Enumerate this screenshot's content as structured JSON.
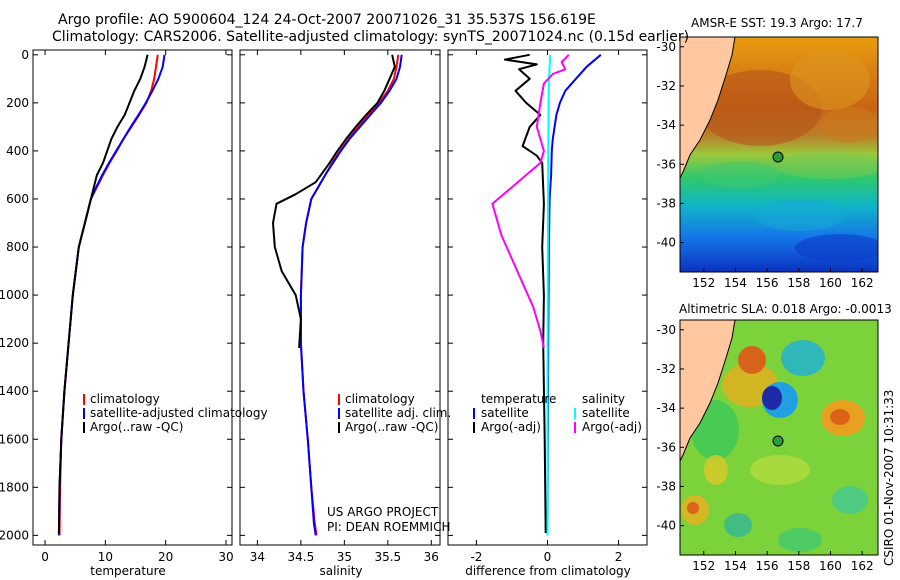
{
  "title_line1": "Argo profile: AO 5900604_124 24-Oct-2007 20071026_31 35.537S 156.619E",
  "title_line2": "Climatology: CARS2006. Satellite-adjusted climatology: synTS_20071024.nc (0.15d earlier)",
  "credit_line1": "US ARGO PROJECT",
  "credit_line2": "PI: DEAN ROEMMICH",
  "side_stamp": "CSIRO 01-Nov-2007 10:31:33",
  "colors": {
    "climatology": "#ff0000",
    "satellite": "#0000ff",
    "argo": "#000000",
    "argo_adj": "#ff00ff",
    "satellite_diff": "#00ffff",
    "land": "#ffc8a0"
  },
  "map_sst": {
    "title": "AMSR-E SST: 19.3  Argo: 17.7",
    "xticks": [
      "152",
      "154",
      "156",
      "158",
      "160",
      "162"
    ],
    "yticks": [
      "-30",
      "-32",
      "-34",
      "-36",
      "-38",
      "-40"
    ]
  },
  "map_sla": {
    "title": "Altimetric SLA: 0.018  Argo: -0.0013",
    "xticks": [
      "152",
      "154",
      "156",
      "158",
      "160",
      "162"
    ],
    "yticks": [
      "-30",
      "-32",
      "-34",
      "-36",
      "-38",
      "-40"
    ]
  },
  "float_position": {
    "lon": 156.619,
    "lat": -35.537
  },
  "chart_data": [
    {
      "type": "line",
      "xlabel": "temperature",
      "xlim": [
        -2,
        31
      ],
      "ylim": [
        2040,
        -20
      ],
      "xticks": [
        "0",
        "10",
        "20",
        "30"
      ],
      "yticks": [
        "0",
        "200",
        "400",
        "600",
        "800",
        "1000",
        "1200",
        "1400",
        "1600",
        "1800",
        "2000"
      ],
      "legend": [
        "climatology",
        "satellite-adjusted climatology",
        "Argo(..raw -QC)"
      ],
      "series": [
        {
          "name": "climatology",
          "color": "#ff0000",
          "x": [
            18.7,
            18.4,
            18.1,
            17.6,
            16.8,
            15.6,
            14.3,
            13.0,
            11.9,
            10.7,
            9.6,
            8.6,
            7.6,
            6.6,
            5.6,
            4.6,
            3.9,
            3.2,
            2.7,
            2.5,
            2.4
          ],
          "y": [
            0,
            50,
            100,
            150,
            200,
            250,
            300,
            350,
            400,
            450,
            500,
            550,
            600,
            700,
            800,
            1000,
            1200,
            1400,
            1600,
            1800,
            2000
          ]
        },
        {
          "name": "satellite-adjusted climatology",
          "color": "#0000ff",
          "x": [
            19.8,
            19.5,
            18.8,
            17.8,
            16.7,
            15.5,
            14.2,
            13.0,
            11.8,
            10.6,
            9.5,
            8.5,
            7.6,
            6.6,
            5.6,
            4.6,
            3.9,
            3.2,
            2.7,
            2.4,
            2.3
          ],
          "y": [
            0,
            50,
            100,
            150,
            200,
            250,
            300,
            350,
            400,
            450,
            500,
            550,
            600,
            700,
            800,
            1000,
            1200,
            1400,
            1600,
            1800,
            2000
          ]
        },
        {
          "name": "Argo(..raw -QC)",
          "color": "#000000",
          "x": [
            17.0,
            16.5,
            15.8,
            14.8,
            14.0,
            13.2,
            12.0,
            11.0,
            10.3,
            9.6,
            8.6,
            7.6,
            6.6,
            5.6,
            4.6,
            3.9,
            3.2,
            2.7,
            2.4,
            2.3
          ],
          "y": [
            0,
            50,
            100,
            150,
            200,
            250,
            300,
            350,
            400,
            450,
            500,
            600,
            700,
            800,
            1000,
            1200,
            1400,
            1600,
            1800,
            1990
          ]
        }
      ]
    },
    {
      "type": "line",
      "xlabel": "salinity",
      "xlim": [
        33.8,
        36.1
      ],
      "ylim": [
        2040,
        -20
      ],
      "xticks": [
        "34",
        "34.5",
        "35",
        "35.5",
        "36"
      ],
      "yticks": [],
      "legend": [
        "climatology",
        "satellite adj. clim.",
        "Argo(..raw -QC)"
      ],
      "series": [
        {
          "name": "climatology",
          "color": "#ff0000",
          "x": [
            35.62,
            35.6,
            35.57,
            35.5,
            35.4,
            35.28,
            35.16,
            35.05,
            34.95,
            34.86,
            34.78,
            34.7,
            34.62,
            34.56,
            34.52,
            34.5,
            34.5,
            34.53,
            34.58,
            34.62,
            34.66,
            34.68
          ],
          "y": [
            0,
            50,
            100,
            150,
            200,
            250,
            300,
            350,
            400,
            450,
            500,
            550,
            600,
            700,
            800,
            1000,
            1200,
            1400,
            1600,
            1800,
            1950,
            2000
          ]
        },
        {
          "name": "satellite adj. clim.",
          "color": "#0000ff",
          "x": [
            35.66,
            35.64,
            35.6,
            35.52,
            35.42,
            35.3,
            35.18,
            35.06,
            34.96,
            34.87,
            34.78,
            34.7,
            34.62,
            34.56,
            34.52,
            34.5,
            34.5,
            34.53,
            34.58,
            34.62,
            34.65,
            34.67
          ],
          "y": [
            0,
            50,
            100,
            150,
            200,
            250,
            300,
            350,
            400,
            450,
            500,
            550,
            600,
            700,
            800,
            1000,
            1200,
            1400,
            1600,
            1800,
            1950,
            2000
          ]
        },
        {
          "name": "Argo(..raw -QC)",
          "color": "#000000",
          "x": [
            35.55,
            35.58,
            35.52,
            35.46,
            35.38,
            35.25,
            35.13,
            35.02,
            34.92,
            34.83,
            34.67,
            34.44,
            34.22,
            34.18,
            34.2,
            34.28,
            34.44,
            34.5,
            34.48
          ],
          "y": [
            0,
            50,
            100,
            150,
            200,
            250,
            300,
            350,
            400,
            450,
            530,
            580,
            620,
            700,
            800,
            900,
            1000,
            1100,
            1220
          ]
        }
      ]
    },
    {
      "type": "line",
      "xlabel": "difference from climatology",
      "xlim": [
        -2.8,
        2.8
      ],
      "ylim": [
        2040,
        -20
      ],
      "xticks": [
        "-2",
        "0",
        "2"
      ],
      "yticks": [],
      "legend": [
        "temperature",
        "satellite",
        "Argo(-adj)",
        "salinity",
        "satellite",
        "Argo(-adj)"
      ],
      "series": [
        {
          "name": "temperature satellite",
          "color": "#0000ff",
          "x": [
            1.5,
            1.1,
            0.8,
            0.5,
            0.35,
            0.25,
            0.2,
            0.15,
            0.12,
            0.1,
            0.06,
            0.04,
            0.02,
            0.0
          ],
          "y": [
            0,
            50,
            100,
            150,
            200,
            250,
            300,
            350,
            400,
            500,
            600,
            800,
            1200,
            2000
          ]
        },
        {
          "name": "temperature Argo(-adj)",
          "color": "#000000",
          "x": [
            -0.5,
            -1.2,
            -0.3,
            -0.8,
            -0.5,
            -0.9,
            -0.6,
            -0.2,
            -0.5,
            -0.7,
            -0.3,
            -0.15,
            -0.1,
            -0.15,
            -0.1,
            -0.12,
            -0.08,
            -0.05
          ],
          "y": [
            0,
            20,
            40,
            60,
            100,
            150,
            200,
            250,
            300,
            380,
            420,
            450,
            620,
            800,
            1000,
            1200,
            1600,
            1990
          ]
        },
        {
          "name": "salinity satellite",
          "color": "#00ffff",
          "x": [
            0.08,
            0.06,
            0.04,
            0.03,
            0.02,
            0.01,
            0.0,
            0.0
          ],
          "y": [
            0,
            50,
            100,
            200,
            400,
            800,
            1400,
            2000
          ]
        },
        {
          "name": "salinity Argo(-adj)",
          "color": "#ff00ff",
          "x": [
            0.6,
            0.4,
            0.5,
            0.15,
            -0.1,
            -0.2,
            -0.3,
            -0.1,
            -0.2,
            -1.55,
            -1.3,
            -1.0,
            -0.7,
            -0.4,
            -0.2,
            -0.1
          ],
          "y": [
            0,
            30,
            60,
            80,
            120,
            200,
            300,
            400,
            450,
            620,
            750,
            850,
            950,
            1050,
            1150,
            1220
          ]
        }
      ]
    }
  ]
}
